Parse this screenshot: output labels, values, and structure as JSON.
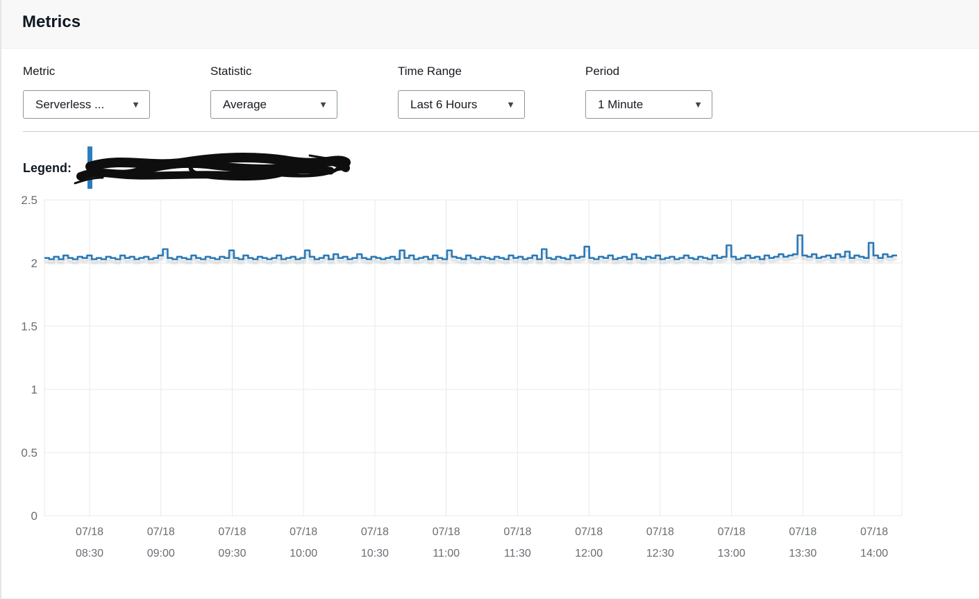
{
  "header": {
    "title": "Metrics"
  },
  "controls": [
    {
      "label": "Metric",
      "value": "Serverless ..."
    },
    {
      "label": "Statistic",
      "value": "Average"
    },
    {
      "label": "Time Range",
      "value": "Last 6 Hours"
    },
    {
      "label": "Period",
      "value": "1 Minute"
    }
  ],
  "icons": {
    "dropdown_caret": "▼"
  },
  "legend": {
    "label": "Legend:",
    "swatch_color": "#2e7dbc"
  },
  "chart_data": {
    "type": "line",
    "title": "",
    "xlabel": "",
    "ylabel": "",
    "ylim": [
      0,
      2.5
    ],
    "grid": true,
    "legend_position": "top-left-above-chart",
    "line_color": "#2b7ab8",
    "grid_color": "#e8e8e8",
    "tick_label_color": "#686d72",
    "y_tick_labels": [
      "2.5",
      "2",
      "1.5",
      "1",
      "0.5",
      "0"
    ],
    "x_tick_labels": [
      {
        "date": "07/18",
        "time": "08:30"
      },
      {
        "date": "07/18",
        "time": "09:00"
      },
      {
        "date": "07/18",
        "time": "09:30"
      },
      {
        "date": "07/18",
        "time": "10:00"
      },
      {
        "date": "07/18",
        "time": "10:30"
      },
      {
        "date": "07/18",
        "time": "11:00"
      },
      {
        "date": "07/18",
        "time": "11:30"
      },
      {
        "date": "07/18",
        "time": "12:00"
      },
      {
        "date": "07/18",
        "time": "12:30"
      },
      {
        "date": "07/18",
        "time": "13:00"
      },
      {
        "date": "07/18",
        "time": "13:30"
      },
      {
        "date": "07/18",
        "time": "14:00"
      }
    ],
    "values": [
      2.04,
      2.03,
      2.05,
      2.03,
      2.06,
      2.04,
      2.03,
      2.05,
      2.04,
      2.06,
      2.03,
      2.04,
      2.03,
      2.05,
      2.04,
      2.03,
      2.06,
      2.04,
      2.05,
      2.03,
      2.04,
      2.05,
      2.03,
      2.04,
      2.06,
      2.11,
      2.04,
      2.03,
      2.05,
      2.04,
      2.03,
      2.06,
      2.04,
      2.03,
      2.05,
      2.04,
      2.03,
      2.05,
      2.04,
      2.1,
      2.04,
      2.03,
      2.06,
      2.04,
      2.03,
      2.05,
      2.04,
      2.03,
      2.04,
      2.06,
      2.03,
      2.04,
      2.05,
      2.03,
      2.04,
      2.1,
      2.05,
      2.03,
      2.04,
      2.06,
      2.03,
      2.07,
      2.04,
      2.05,
      2.03,
      2.04,
      2.07,
      2.04,
      2.03,
      2.05,
      2.04,
      2.03,
      2.04,
      2.05,
      2.03,
      2.1,
      2.04,
      2.06,
      2.03,
      2.04,
      2.05,
      2.03,
      2.06,
      2.04,
      2.03,
      2.1,
      2.05,
      2.04,
      2.03,
      2.06,
      2.04,
      2.03,
      2.05,
      2.04,
      2.03,
      2.05,
      2.04,
      2.03,
      2.06,
      2.04,
      2.05,
      2.03,
      2.04,
      2.06,
      2.03,
      2.11,
      2.04,
      2.03,
      2.05,
      2.04,
      2.03,
      2.06,
      2.04,
      2.05,
      2.13,
      2.04,
      2.03,
      2.05,
      2.04,
      2.06,
      2.03,
      2.04,
      2.05,
      2.03,
      2.07,
      2.04,
      2.03,
      2.05,
      2.04,
      2.06,
      2.03,
      2.04,
      2.05,
      2.03,
      2.04,
      2.06,
      2.04,
      2.03,
      2.05,
      2.04,
      2.03,
      2.06,
      2.04,
      2.05,
      2.14,
      2.05,
      2.03,
      2.04,
      2.06,
      2.04,
      2.05,
      2.03,
      2.06,
      2.04,
      2.05,
      2.07,
      2.05,
      2.06,
      2.07,
      2.22,
      2.06,
      2.05,
      2.07,
      2.04,
      2.05,
      2.06,
      2.04,
      2.07,
      2.05,
      2.09,
      2.04,
      2.06,
      2.05,
      2.04,
      2.16,
      2.06,
      2.04,
      2.07,
      2.05,
      2.06
    ]
  }
}
